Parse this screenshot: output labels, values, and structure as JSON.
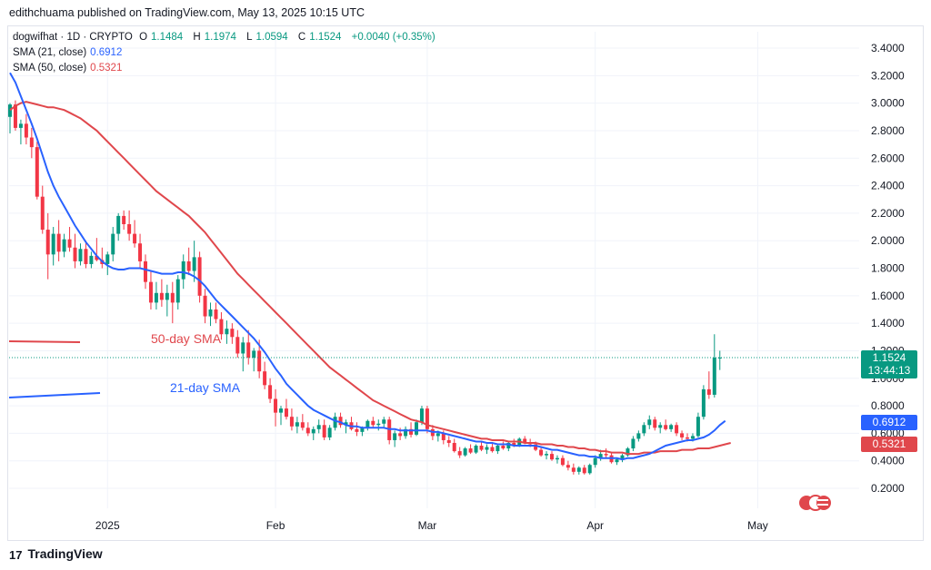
{
  "header": {
    "publisher_line": "edithchuama published on TradingView.com, May 13, 2025 10:15 UTC"
  },
  "legend": {
    "symbol": "dogwifhat · 1D · CRYPTO",
    "open_label": "O",
    "open": "1.1484",
    "high_label": "H",
    "high": "1.1974",
    "low_label": "L",
    "low": "1.0594",
    "close_label": "C",
    "close": "1.1524",
    "change": "+0.0040 (+0.35%)",
    "sma21_label": "SMA (21, close)",
    "sma21_value": "0.6912",
    "sma50_label": "SMA (50, close)",
    "sma50_value": "0.5321"
  },
  "price_tags": {
    "last_price": "1.1524",
    "countdown": "13:44:13",
    "sma21": "0.6912",
    "sma50": "0.5321"
  },
  "annotations": {
    "sma50_text": "50-day SMA",
    "sma21_text": "21-day SMA"
  },
  "footer": {
    "brand": "TradingView",
    "logo": "17"
  },
  "colors": {
    "up": "#089981",
    "down": "#f23645",
    "sma21": "#2962ff",
    "sma50": "#e0474c",
    "axis_text": "#131722",
    "grid": "#f0f3fa"
  },
  "chart_data": {
    "type": "candlestick",
    "title": "dogwifhat · 1D · CRYPTO",
    "y_axis": {
      "ticks": [
        "3.4000",
        "3.2000",
        "3.0000",
        "2.8000",
        "2.6000",
        "2.4000",
        "2.2000",
        "2.0000",
        "1.8000",
        "1.6000",
        "1.4000",
        "1.2000",
        "1.0000",
        "0.8000",
        "0.6000",
        "0.4000",
        "0.2000"
      ],
      "range": [
        0.08,
        3.45
      ]
    },
    "x_axis": {
      "ticks": [
        "2025",
        "Feb",
        "Mar",
        "Apr",
        "May"
      ],
      "tick_index": [
        18,
        49,
        77,
        108,
        138
      ]
    },
    "candles": [
      [
        2.9,
        3.0,
        2.78,
        2.99
      ],
      [
        2.99,
        3.02,
        2.8,
        2.82
      ],
      [
        2.82,
        2.88,
        2.7,
        2.85
      ],
      [
        2.85,
        2.92,
        2.7,
        2.75
      ],
      [
        2.75,
        2.82,
        2.6,
        2.68
      ],
      [
        2.68,
        2.72,
        2.3,
        2.32
      ],
      [
        2.32,
        2.4,
        2.05,
        2.08
      ],
      [
        2.08,
        2.2,
        1.72,
        1.9
      ],
      [
        1.9,
        2.1,
        1.82,
        2.05
      ],
      [
        2.05,
        2.15,
        1.85,
        1.92
      ],
      [
        1.92,
        2.05,
        1.88,
        2.01
      ],
      [
        2.01,
        2.1,
        1.92,
        1.95
      ],
      [
        1.95,
        2.05,
        1.8,
        1.85
      ],
      [
        1.85,
        1.98,
        1.82,
        1.94
      ],
      [
        1.94,
        2.0,
        1.8,
        1.83
      ],
      [
        1.83,
        1.92,
        1.8,
        1.89
      ],
      [
        1.89,
        2.02,
        1.85,
        1.86
      ],
      [
        1.86,
        1.95,
        1.8,
        1.83
      ],
      [
        1.83,
        1.92,
        1.75,
        1.9
      ],
      [
        1.9,
        2.1,
        1.85,
        2.05
      ],
      [
        2.05,
        2.2,
        2.0,
        2.18
      ],
      [
        2.18,
        2.22,
        2.08,
        2.12
      ],
      [
        2.12,
        2.22,
        2.0,
        2.05
      ],
      [
        2.05,
        2.15,
        1.95,
        1.98
      ],
      [
        1.98,
        2.05,
        1.8,
        1.85
      ],
      [
        1.85,
        1.9,
        1.65,
        1.7
      ],
      [
        1.7,
        1.78,
        1.5,
        1.55
      ],
      [
        1.55,
        1.7,
        1.5,
        1.62
      ],
      [
        1.62,
        1.72,
        1.52,
        1.57
      ],
      [
        1.57,
        1.68,
        1.45,
        1.62
      ],
      [
        1.62,
        1.7,
        1.4,
        1.55
      ],
      [
        1.55,
        1.75,
        1.5,
        1.72
      ],
      [
        1.72,
        1.9,
        1.65,
        1.85
      ],
      [
        1.85,
        1.95,
        1.75,
        1.78
      ],
      [
        1.78,
        2.0,
        1.7,
        1.88
      ],
      [
        1.88,
        1.92,
        1.55,
        1.6
      ],
      [
        1.6,
        1.65,
        1.4,
        1.45
      ],
      [
        1.45,
        1.55,
        1.38,
        1.5
      ],
      [
        1.5,
        1.55,
        1.4,
        1.43
      ],
      [
        1.43,
        1.48,
        1.28,
        1.32
      ],
      [
        1.32,
        1.42,
        1.25,
        1.36
      ],
      [
        1.36,
        1.4,
        1.25,
        1.3
      ],
      [
        1.3,
        1.35,
        1.15,
        1.18
      ],
      [
        1.18,
        1.3,
        1.05,
        1.26
      ],
      [
        1.26,
        1.35,
        1.1,
        1.15
      ],
      [
        1.15,
        1.22,
        1.05,
        1.2
      ],
      [
        1.2,
        1.28,
        1.0,
        1.05
      ],
      [
        1.05,
        1.12,
        0.92,
        0.95
      ],
      [
        0.95,
        1.0,
        0.82,
        0.85
      ],
      [
        0.85,
        0.92,
        0.65,
        0.75
      ],
      [
        0.75,
        0.8,
        0.66,
        0.78
      ],
      [
        0.78,
        0.85,
        0.7,
        0.72
      ],
      [
        0.72,
        0.78,
        0.62,
        0.65
      ],
      [
        0.65,
        0.72,
        0.6,
        0.68
      ],
      [
        0.68,
        0.74,
        0.62,
        0.64
      ],
      [
        0.64,
        0.68,
        0.58,
        0.6
      ],
      [
        0.6,
        0.65,
        0.55,
        0.63
      ],
      [
        0.63,
        0.7,
        0.6,
        0.66
      ],
      [
        0.66,
        0.7,
        0.55,
        0.57
      ],
      [
        0.57,
        0.66,
        0.55,
        0.64
      ],
      [
        0.64,
        0.75,
        0.62,
        0.72
      ],
      [
        0.72,
        0.75,
        0.64,
        0.66
      ],
      [
        0.66,
        0.7,
        0.6,
        0.68
      ],
      [
        0.68,
        0.72,
        0.62,
        0.63
      ],
      [
        0.63,
        0.68,
        0.58,
        0.61
      ],
      [
        0.61,
        0.65,
        0.58,
        0.64
      ],
      [
        0.64,
        0.7,
        0.62,
        0.69
      ],
      [
        0.69,
        0.72,
        0.64,
        0.66
      ],
      [
        0.66,
        0.7,
        0.62,
        0.67
      ],
      [
        0.67,
        0.72,
        0.64,
        0.7
      ],
      [
        0.7,
        0.72,
        0.52,
        0.55
      ],
      [
        0.55,
        0.62,
        0.5,
        0.6
      ],
      [
        0.6,
        0.64,
        0.55,
        0.58
      ],
      [
        0.58,
        0.65,
        0.56,
        0.63
      ],
      [
        0.63,
        0.68,
        0.57,
        0.59
      ],
      [
        0.59,
        0.7,
        0.58,
        0.68
      ],
      [
        0.68,
        0.8,
        0.66,
        0.78
      ],
      [
        0.78,
        0.8,
        0.6,
        0.63
      ],
      [
        0.63,
        0.66,
        0.55,
        0.58
      ],
      [
        0.58,
        0.62,
        0.54,
        0.6
      ],
      [
        0.6,
        0.62,
        0.52,
        0.55
      ],
      [
        0.55,
        0.58,
        0.5,
        0.53
      ],
      [
        0.53,
        0.56,
        0.46,
        0.47
      ],
      [
        0.47,
        0.5,
        0.42,
        0.44
      ],
      [
        0.44,
        0.5,
        0.43,
        0.49
      ],
      [
        0.49,
        0.52,
        0.45,
        0.46
      ],
      [
        0.46,
        0.52,
        0.45,
        0.51
      ],
      [
        0.51,
        0.54,
        0.47,
        0.48
      ],
      [
        0.48,
        0.52,
        0.45,
        0.5
      ],
      [
        0.5,
        0.53,
        0.46,
        0.47
      ],
      [
        0.47,
        0.52,
        0.45,
        0.51
      ],
      [
        0.51,
        0.54,
        0.48,
        0.49
      ],
      [
        0.49,
        0.54,
        0.47,
        0.53
      ],
      [
        0.53,
        0.56,
        0.5,
        0.51
      ],
      [
        0.51,
        0.57,
        0.5,
        0.56
      ],
      [
        0.56,
        0.58,
        0.52,
        0.53
      ],
      [
        0.53,
        0.56,
        0.5,
        0.52
      ],
      [
        0.52,
        0.54,
        0.47,
        0.48
      ],
      [
        0.48,
        0.5,
        0.43,
        0.44
      ],
      [
        0.44,
        0.47,
        0.41,
        0.45
      ],
      [
        0.45,
        0.47,
        0.4,
        0.41
      ],
      [
        0.41,
        0.44,
        0.38,
        0.42
      ],
      [
        0.42,
        0.44,
        0.36,
        0.37
      ],
      [
        0.37,
        0.4,
        0.33,
        0.35
      ],
      [
        0.35,
        0.38,
        0.3,
        0.32
      ],
      [
        0.32,
        0.36,
        0.3,
        0.35
      ],
      [
        0.35,
        0.37,
        0.3,
        0.31
      ],
      [
        0.31,
        0.38,
        0.3,
        0.37
      ],
      [
        0.37,
        0.44,
        0.35,
        0.42
      ],
      [
        0.42,
        0.48,
        0.4,
        0.45
      ],
      [
        0.45,
        0.49,
        0.42,
        0.44
      ],
      [
        0.44,
        0.46,
        0.38,
        0.39
      ],
      [
        0.39,
        0.42,
        0.37,
        0.41
      ],
      [
        0.41,
        0.45,
        0.39,
        0.44
      ],
      [
        0.44,
        0.5,
        0.43,
        0.49
      ],
      [
        0.49,
        0.58,
        0.47,
        0.56
      ],
      [
        0.56,
        0.62,
        0.54,
        0.6
      ],
      [
        0.6,
        0.68,
        0.58,
        0.66
      ],
      [
        0.66,
        0.73,
        0.63,
        0.7
      ],
      [
        0.7,
        0.72,
        0.62,
        0.64
      ],
      [
        0.64,
        0.68,
        0.6,
        0.66
      ],
      [
        0.66,
        0.7,
        0.62,
        0.63
      ],
      [
        0.63,
        0.67,
        0.61,
        0.66
      ],
      [
        0.66,
        0.68,
        0.58,
        0.6
      ],
      [
        0.6,
        0.62,
        0.55,
        0.57
      ],
      [
        0.57,
        0.6,
        0.54,
        0.56
      ],
      [
        0.56,
        0.6,
        0.54,
        0.58
      ],
      [
        0.58,
        0.75,
        0.57,
        0.72
      ],
      [
        0.72,
        0.95,
        0.7,
        0.92
      ],
      [
        0.92,
        1.05,
        0.85,
        0.88
      ],
      [
        0.88,
        1.32,
        0.86,
        1.15
      ],
      [
        1.15,
        1.2,
        1.06,
        1.15
      ]
    ],
    "sma21": [
      3.22,
      3.15,
      3.05,
      2.95,
      2.85,
      2.74,
      2.62,
      2.5,
      2.4,
      2.32,
      2.25,
      2.18,
      2.11,
      2.05,
      1.99,
      1.94,
      1.89,
      1.85,
      1.82,
      1.8,
      1.79,
      1.79,
      1.8,
      1.8,
      1.8,
      1.79,
      1.78,
      1.77,
      1.76,
      1.76,
      1.76,
      1.77,
      1.77,
      1.76,
      1.74,
      1.71,
      1.67,
      1.62,
      1.57,
      1.53,
      1.49,
      1.45,
      1.41,
      1.37,
      1.33,
      1.29,
      1.24,
      1.19,
      1.13,
      1.07,
      1.02,
      0.96,
      0.92,
      0.88,
      0.84,
      0.8,
      0.77,
      0.75,
      0.73,
      0.71,
      0.69,
      0.68,
      0.66,
      0.65,
      0.65,
      0.64,
      0.64,
      0.64,
      0.64,
      0.64,
      0.63,
      0.63,
      0.62,
      0.62,
      0.62,
      0.62,
      0.62,
      0.62,
      0.61,
      0.61,
      0.6,
      0.59,
      0.58,
      0.57,
      0.56,
      0.55,
      0.54,
      0.54,
      0.53,
      0.53,
      0.52,
      0.52,
      0.52,
      0.51,
      0.51,
      0.51,
      0.51,
      0.51,
      0.5,
      0.49,
      0.48,
      0.48,
      0.47,
      0.46,
      0.45,
      0.44,
      0.44,
      0.43,
      0.43,
      0.42,
      0.42,
      0.42,
      0.42,
      0.41,
      0.42,
      0.42,
      0.43,
      0.44,
      0.45,
      0.47,
      0.49,
      0.51,
      0.52,
      0.53,
      0.54,
      0.55,
      0.55,
      0.56,
      0.57,
      0.59,
      0.62,
      0.66,
      0.69
    ],
    "sma50": [
      2.95,
      2.98,
      3.0,
      3.01,
      3.0,
      2.99,
      2.98,
      2.97,
      2.97,
      2.96,
      2.95,
      2.93,
      2.91,
      2.89,
      2.86,
      2.83,
      2.8,
      2.76,
      2.72,
      2.68,
      2.64,
      2.6,
      2.56,
      2.52,
      2.48,
      2.44,
      2.4,
      2.36,
      2.33,
      2.3,
      2.27,
      2.24,
      2.21,
      2.18,
      2.14,
      2.1,
      2.06,
      2.01,
      1.96,
      1.91,
      1.86,
      1.81,
      1.76,
      1.72,
      1.68,
      1.64,
      1.6,
      1.56,
      1.52,
      1.48,
      1.44,
      1.4,
      1.36,
      1.32,
      1.28,
      1.24,
      1.2,
      1.16,
      1.12,
      1.08,
      1.05,
      1.02,
      0.99,
      0.96,
      0.93,
      0.9,
      0.87,
      0.84,
      0.82,
      0.8,
      0.78,
      0.76,
      0.74,
      0.72,
      0.7,
      0.69,
      0.68,
      0.66,
      0.65,
      0.64,
      0.63,
      0.62,
      0.61,
      0.6,
      0.59,
      0.58,
      0.57,
      0.56,
      0.56,
      0.55,
      0.55,
      0.55,
      0.54,
      0.54,
      0.54,
      0.53,
      0.53,
      0.53,
      0.52,
      0.52,
      0.52,
      0.51,
      0.51,
      0.5,
      0.5,
      0.49,
      0.49,
      0.48,
      0.48,
      0.47,
      0.47,
      0.46,
      0.46,
      0.46,
      0.45,
      0.45,
      0.45,
      0.46,
      0.46,
      0.46,
      0.47,
      0.47,
      0.47,
      0.47,
      0.48,
      0.48,
      0.48,
      0.49,
      0.49,
      0.49,
      0.5,
      0.51,
      0.52,
      0.53
    ]
  }
}
